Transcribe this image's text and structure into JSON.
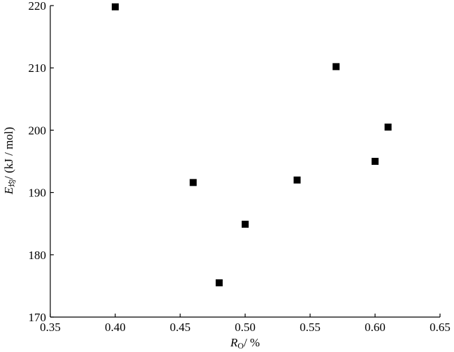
{
  "chart_data": {
    "type": "scatter",
    "x_label": {
      "main": "R",
      "sub": "O",
      "rest": "/ %"
    },
    "y_label": {
      "main": "E",
      "sub": "均",
      "rest": "/ (kJ / mol)"
    },
    "x": [
      0.4,
      0.46,
      0.48,
      0.5,
      0.54,
      0.57,
      0.6,
      0.61
    ],
    "values": [
      219.8,
      191.6,
      175.5,
      184.9,
      192.0,
      210.2,
      195.0,
      200.5
    ],
    "color": "#000000",
    "xlim": [
      0.35,
      0.65
    ],
    "xticks": [
      0.35,
      {
        "value": 0.4,
        "label": "0.40"
      },
      0.45,
      {
        "value": 0.5,
        "label": "0.50"
      },
      0.55,
      {
        "value": 0.6,
        "label": "0.60"
      },
      0.65
    ],
    "ylim": [
      170,
      220
    ],
    "yticks": [
      170,
      180,
      190,
      200,
      210,
      220
    ],
    "grid": false
  }
}
